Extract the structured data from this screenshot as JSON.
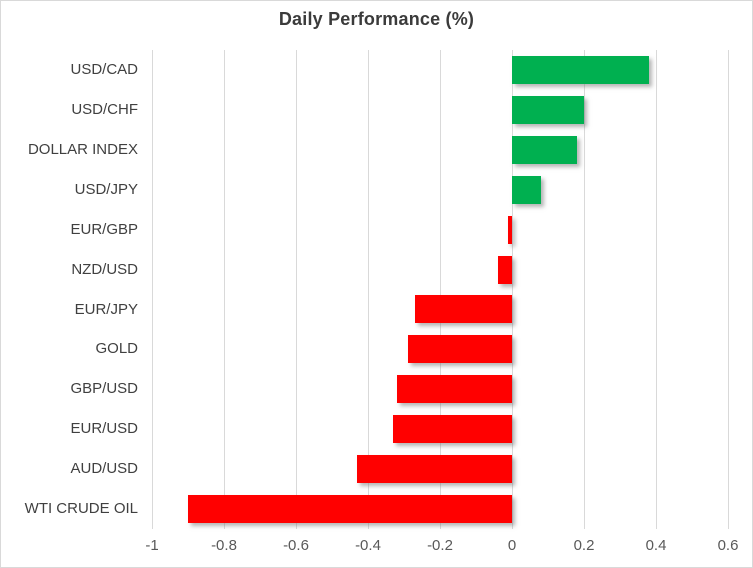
{
  "chart_data": {
    "type": "bar",
    "orientation": "horizontal",
    "title": "Daily Performance (%)",
    "categories": [
      "USD/CAD",
      "USD/CHF",
      "DOLLAR INDEX",
      "USD/JPY",
      "EUR/GBP",
      "NZD/USD",
      "EUR/JPY",
      "GOLD",
      "GBP/USD",
      "EUR/USD",
      "AUD/USD",
      "WTI CRUDE OIL"
    ],
    "values": [
      0.38,
      0.2,
      0.18,
      0.08,
      -0.01,
      -0.04,
      -0.27,
      -0.29,
      -0.32,
      -0.33,
      -0.43,
      -0.9
    ],
    "xlim": [
      -1,
      0.6
    ],
    "x_ticks": [
      -1,
      -0.8,
      -0.6,
      -0.4,
      -0.2,
      0,
      0.2,
      0.4,
      0.6
    ],
    "x_tick_labels": [
      "-1",
      "-0.8",
      "-0.6",
      "-0.4",
      "-0.2",
      "0",
      "0.2",
      "0.4",
      "0.6"
    ],
    "xlabel": "",
    "ylabel": "",
    "grid": "vertical-only",
    "legend": "none",
    "colors": {
      "positive_bar": "#00B050",
      "negative_bar": "#FF0000",
      "gridline": "#D9D9D9",
      "category_label": "#404040",
      "tick_label": "#595959",
      "title": "#3B3B3B"
    }
  }
}
